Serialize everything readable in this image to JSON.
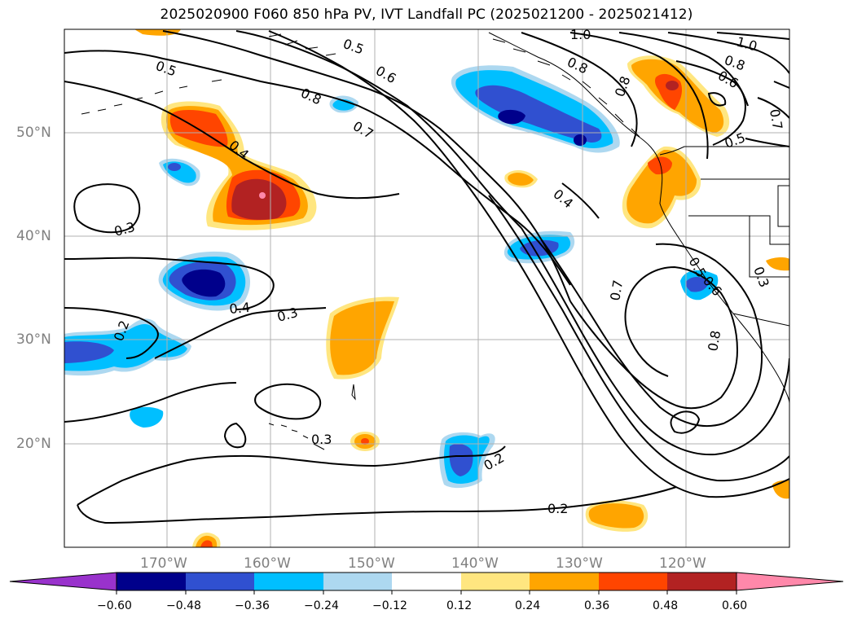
{
  "title": "2025020900 F060 850 hPa PV, IVT Landfall PC (2025021200 - 2025021412)",
  "lat_labels": [
    "50°N",
    "40°N",
    "30°N",
    "20°N"
  ],
  "lon_labels": [
    "170°W",
    "160°W",
    "150°W",
    "140°W",
    "130°W",
    "120°W"
  ],
  "colorbar": {
    "tick_labels": [
      "−0.60",
      "−0.48",
      "−0.36",
      "−0.24",
      "−0.12",
      "0.12",
      "0.24",
      "0.36",
      "0.48",
      "0.60"
    ],
    "colors": [
      "#9932cc",
      "#00008b",
      "#3050d0",
      "#00bfff",
      "#add8f0",
      "#ffffff",
      "#ffe680",
      "#ffa500",
      "#ff4500",
      "#b22222",
      "#ff88aa"
    ]
  },
  "contour_labels": [
    "1.0",
    "0.5",
    "0.8",
    "0.5",
    "0.6",
    "0.8",
    "0.7",
    "1.0",
    "0.8",
    "0.6",
    "0.7",
    "0.5",
    "0.4",
    "0.4",
    "0.3",
    "0.4",
    "0.3",
    "0.2",
    "0.3",
    "0.2",
    "0.2",
    "0.5",
    "0.6",
    "0.3",
    "0.7",
    "0.8",
    "0.8"
  ],
  "fill_colors": {
    "orange_light": "#ffe680",
    "orange": "#ffa500",
    "red_orange": "#ff4500",
    "dark_red": "#b22222",
    "pink": "#ff88aa",
    "light_blue": "#add8f0",
    "cyan": "#00bfff",
    "blue": "#3050d0",
    "navy": "#00008b"
  }
}
